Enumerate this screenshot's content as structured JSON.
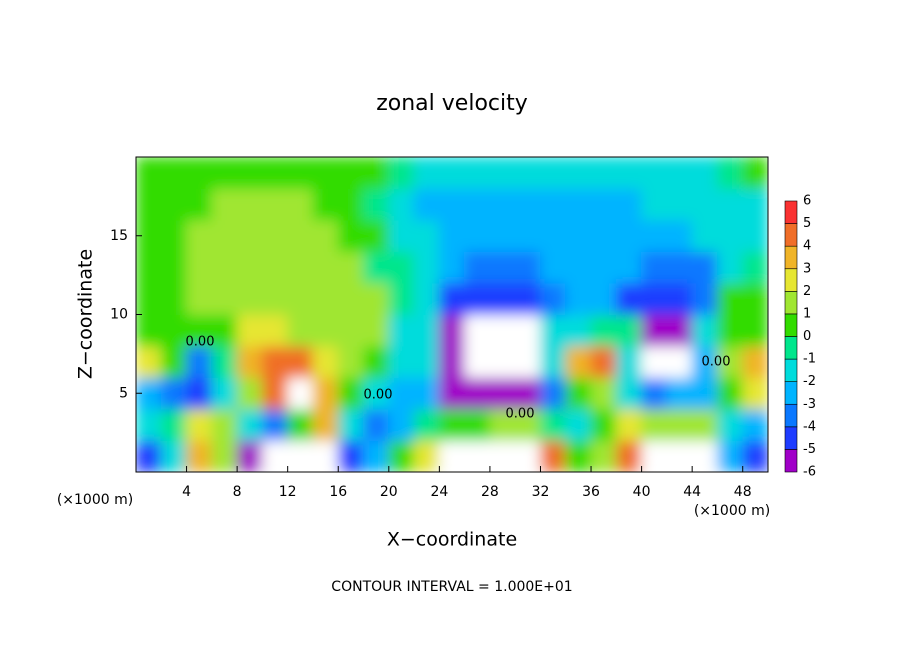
{
  "chart_data": {
    "type": "contour",
    "title": "zonal velocity",
    "xlabel": "X−coordinate",
    "ylabel": "Z−coordinate",
    "x_unit_labels": [
      "(×1000 m)",
      "(×1000 m)"
    ],
    "footer": "CONTOUR INTERVAL = 1.000E+01",
    "contour_labels": [
      "0.00",
      "0.00",
      "0.00",
      "0.00"
    ],
    "xlim": [
      0,
      50
    ],
    "ylim": [
      0,
      20
    ],
    "xticks": [
      4,
      8,
      12,
      16,
      20,
      24,
      28,
      32,
      36,
      40,
      44,
      48
    ],
    "yticks": [
      5,
      10,
      15
    ],
    "x": [
      1,
      3,
      5,
      7,
      9,
      11,
      13,
      15,
      17,
      19,
      21,
      23,
      25,
      27,
      29,
      31,
      33,
      35,
      37,
      39,
      41,
      43,
      45,
      47,
      49
    ],
    "z": [
      1,
      3,
      5,
      7,
      9,
      11,
      13,
      15,
      17,
      19
    ],
    "values": [
      [
        -4,
        -1,
        4,
        2,
        -5,
        -8,
        -8,
        -8,
        -4,
        -2,
        1,
        3,
        8,
        8,
        8,
        8,
        5,
        1,
        2,
        5,
        8,
        8,
        8,
        -2,
        -4
      ],
      [
        -1,
        0,
        3,
        2,
        -1,
        -3,
        1,
        4,
        -1,
        -3,
        -2,
        0,
        1,
        1,
        2,
        2,
        0,
        -1,
        1,
        3,
        2,
        2,
        2,
        -1,
        -2
      ],
      [
        -2,
        -3,
        -4,
        -1,
        2,
        5,
        7,
        4,
        1,
        -1,
        -2,
        -2,
        -5,
        -6,
        -6,
        -6,
        -3,
        1,
        2,
        -1,
        -3,
        -2,
        -2,
        1,
        3
      ],
      [
        3,
        1,
        -3,
        0,
        4,
        5,
        5,
        3,
        2,
        1,
        -1,
        -1,
        -6,
        -8,
        -8,
        -8,
        -1,
        4,
        5,
        -1,
        -8,
        -8,
        -2,
        2,
        4
      ],
      [
        1,
        1,
        1,
        1,
        3,
        3,
        2,
        2,
        1.5,
        1.5,
        -1,
        -1,
        -5,
        -7,
        -7,
        -7,
        -1,
        -1,
        -0.5,
        -0.5,
        -5,
        -5,
        -1,
        1,
        1
      ],
      [
        1,
        1,
        1.5,
        1.5,
        1.5,
        2,
        2,
        2,
        1.5,
        1.5,
        -0.5,
        -1,
        -4,
        -4.5,
        -4.5,
        -4.5,
        -3,
        -2,
        -2,
        -4,
        -4.5,
        -4,
        -3,
        0.5,
        0.5
      ],
      [
        0.5,
        0.5,
        1.5,
        1.5,
        1.5,
        1.5,
        1.5,
        1.5,
        1.5,
        0,
        -0.5,
        -1.5,
        -2.5,
        -3,
        -3,
        -3,
        -2,
        -2,
        -2,
        -2,
        -3,
        -3,
        -3,
        -1,
        -0.5
      ],
      [
        0.5,
        0.5,
        1.5,
        1.5,
        1.5,
        1.5,
        1.5,
        1.5,
        1,
        1,
        -1,
        -1.5,
        -2.5,
        -2.5,
        -2.5,
        -2.5,
        -2,
        -2,
        -2,
        -2,
        -2,
        -2,
        -1,
        -1,
        -1
      ],
      [
        0.5,
        1,
        1,
        1.2,
        1.2,
        1.2,
        1.2,
        1,
        0.5,
        -0.5,
        -1.5,
        -2.5,
        -2.5,
        -2.5,
        -2.5,
        -2.5,
        -2,
        -2,
        -2,
        -2,
        -1.5,
        -1.5,
        -1.5,
        -1.5,
        -1
      ],
      [
        0.5,
        0.5,
        0.8,
        0.8,
        0.8,
        0.8,
        0.8,
        0.6,
        0.5,
        0.3,
        -0.5,
        -1,
        -1.5,
        -1.5,
        -1.5,
        -1.5,
        -1.5,
        -1.5,
        -1,
        -1,
        -1,
        -1,
        -1,
        -0.5,
        0.5
      ]
    ],
    "colorbar": {
      "levels": [
        -6,
        -5,
        -4,
        -3,
        -2,
        -1,
        0,
        1,
        2,
        3,
        4,
        5,
        6
      ],
      "colors": [
        "#a000c8",
        "#1e3cff",
        "#0a78ff",
        "#00b4ff",
        "#00dcdc",
        "#00e68c",
        "#32dc00",
        "#a0e632",
        "#e6e632",
        "#f0b428",
        "#f06e28",
        "#fa3232",
        "#f0a0a0"
      ],
      "out_of_range_color": "#ffffff"
    }
  }
}
